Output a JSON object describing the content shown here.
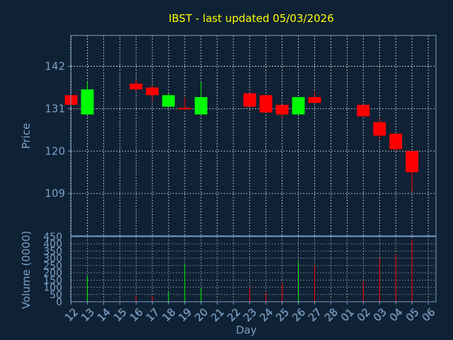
{
  "title": "IBST - last updated 05/03/2026",
  "colors": {
    "background": "#0f2134",
    "up": "#00ff00",
    "down": "#ff0000",
    "grid": "#ffffff",
    "axis": "#7aa0c8",
    "title": "#ffff00"
  },
  "chart_data": [
    {
      "type": "candlestick",
      "ylabel": "Price",
      "ylim": [
        98,
        150
      ],
      "yticks": [
        "142",
        "131",
        "120",
        "109"
      ],
      "grid": true,
      "x_slots": [
        "12",
        "13",
        "14",
        "15",
        "16",
        "17",
        "18",
        "19",
        "20",
        "21",
        "22",
        "23",
        "24",
        "25",
        "26",
        "27",
        "28",
        "01",
        "02",
        "03",
        "04",
        "05",
        "06"
      ],
      "candles": [
        {
          "x": "12",
          "open": 134.5,
          "close": 132.0,
          "high": 134.5,
          "low": 132.0
        },
        {
          "x": "13",
          "open": 129.5,
          "close": 136.0,
          "high": 138.0,
          "low": 129.5
        },
        {
          "x": "16",
          "open": 137.5,
          "close": 136.0,
          "high": 138.5,
          "low": 135.5
        },
        {
          "x": "17",
          "open": 136.5,
          "close": 134.5,
          "high": 137.0,
          "low": 133.0
        },
        {
          "x": "18",
          "open": 131.5,
          "close": 134.5,
          "high": 135.0,
          "low": 131.5
        },
        {
          "x": "19",
          "open": 131.2,
          "close": 131.0,
          "high": 134.0,
          "low": 130.5
        },
        {
          "x": "20",
          "open": 129.5,
          "close": 134.0,
          "high": 138.0,
          "low": 129.5
        },
        {
          "x": "23",
          "open": 135.0,
          "close": 131.5,
          "high": 135.0,
          "low": 131.5
        },
        {
          "x": "24",
          "open": 134.5,
          "close": 130.0,
          "high": 134.5,
          "low": 130.0
        },
        {
          "x": "25",
          "open": 132.0,
          "close": 129.5,
          "high": 132.0,
          "low": 128.5
        },
        {
          "x": "26",
          "open": 129.5,
          "close": 134.0,
          "high": 134.0,
          "low": 129.5
        },
        {
          "x": "27",
          "open": 134.0,
          "close": 132.5,
          "high": 135.5,
          "low": 132.5
        },
        {
          "x": "02",
          "open": 132.0,
          "close": 129.0,
          "high": 132.0,
          "low": 129.0
        },
        {
          "x": "03",
          "open": 127.5,
          "close": 124.0,
          "high": 128.5,
          "low": 123.0
        },
        {
          "x": "04",
          "open": 124.5,
          "close": 120.5,
          "high": 124.5,
          "low": 120.0
        },
        {
          "x": "05",
          "open": 120.0,
          "close": 114.5,
          "high": 120.0,
          "low": 109.5
        }
      ]
    },
    {
      "type": "bar",
      "ylabel": "Volume (0000)",
      "xlabel": "Day",
      "ylim": [
        0,
        450
      ],
      "yticks": [
        "450",
        "400",
        "350",
        "300",
        "250",
        "200",
        "150",
        "100",
        "50",
        "0"
      ],
      "xticks": [
        "12",
        "13",
        "14",
        "15",
        "16",
        "17",
        "18",
        "19",
        "20",
        "21",
        "22",
        "23",
        "24",
        "25",
        "26",
        "27",
        "28",
        "01",
        "02",
        "03",
        "04",
        "05",
        "06"
      ],
      "grid": true,
      "bars": [
        {
          "x": "12",
          "value": 0,
          "color": "down"
        },
        {
          "x": "13",
          "value": 180,
          "color": "up"
        },
        {
          "x": "16",
          "value": 40,
          "color": "down"
        },
        {
          "x": "17",
          "value": 40,
          "color": "down"
        },
        {
          "x": "18",
          "value": 70,
          "color": "up"
        },
        {
          "x": "19",
          "value": 260,
          "color": "up"
        },
        {
          "x": "20",
          "value": 95,
          "color": "up"
        },
        {
          "x": "23",
          "value": 100,
          "color": "down"
        },
        {
          "x": "24",
          "value": 65,
          "color": "down"
        },
        {
          "x": "25",
          "value": 130,
          "color": "down"
        },
        {
          "x": "26",
          "value": 280,
          "color": "up"
        },
        {
          "x": "27",
          "value": 250,
          "color": "down"
        },
        {
          "x": "02",
          "value": 140,
          "color": "down"
        },
        {
          "x": "03",
          "value": 300,
          "color": "down"
        },
        {
          "x": "04",
          "value": 330,
          "color": "down"
        },
        {
          "x": "05",
          "value": 430,
          "color": "down"
        }
      ]
    }
  ]
}
